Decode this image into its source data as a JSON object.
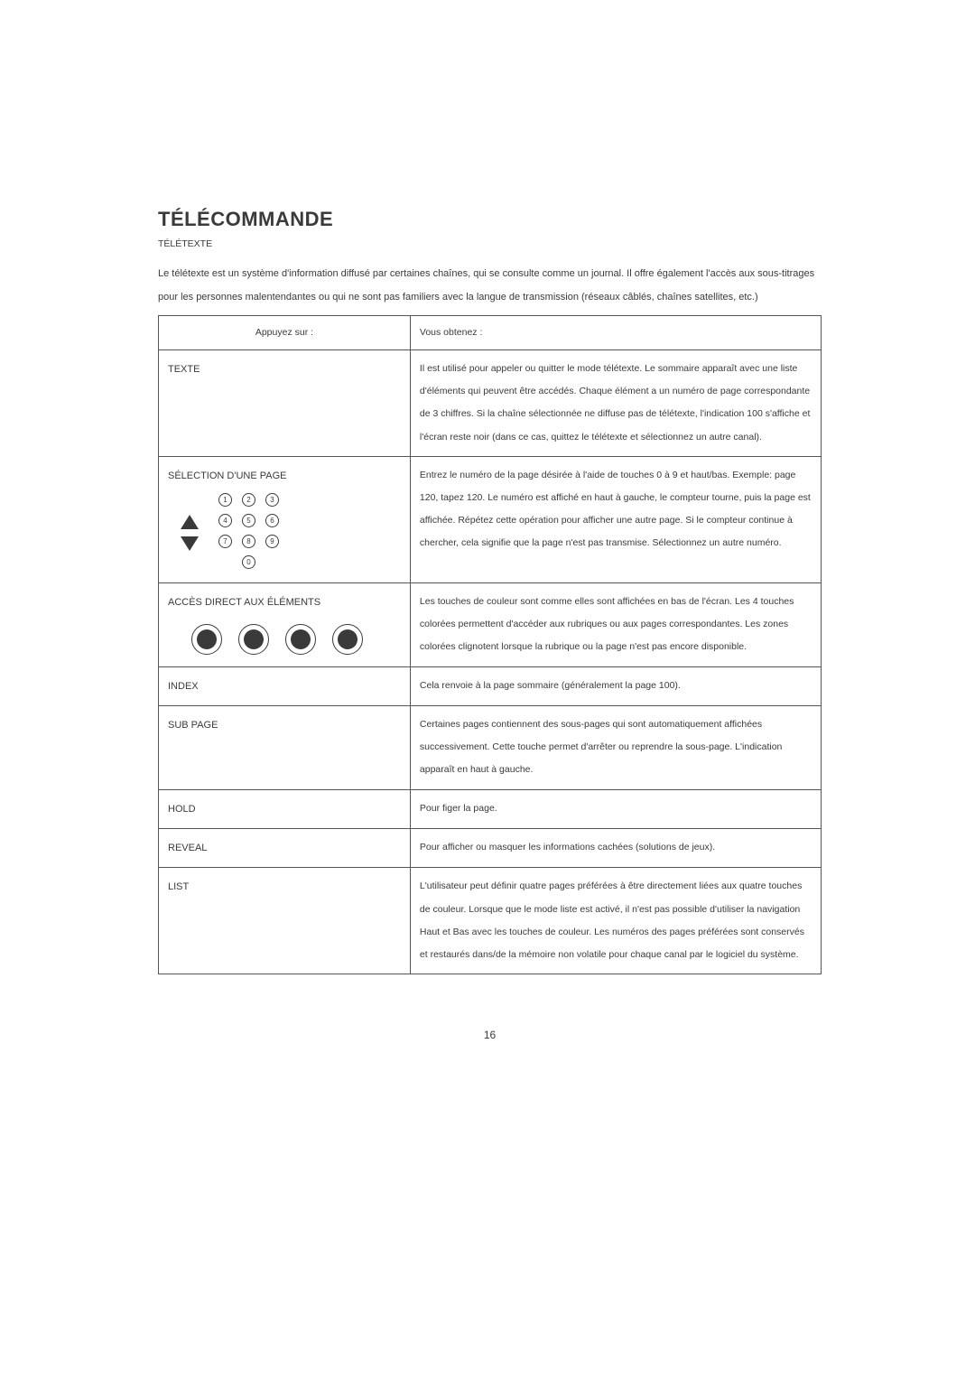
{
  "title": "TÉLÉCOMMANDE",
  "subtitle": "TÉLÉTEXTE",
  "intro": "Le télétexte est un système d'information diffusé par certaines chaînes, qui se consulte comme un journal. Il offre également l'accès aux sous-titrages pour les personnes malentendantes ou qui ne sont pas familiers avec la langue de transmission (réseaux câblés, chaînes satellites, etc.)",
  "headers": {
    "left": "Appuyez sur :",
    "right": "Vous obtenez :"
  },
  "rows": {
    "texte": {
      "label": "TEXTE",
      "desc": "Il est utilisé pour appeler ou quitter le mode télétexte. Le sommaire apparaît avec une liste d'éléments qui peuvent être accédés. Chaque élément a un numéro de page correspondante de 3 chiffres. Si la chaîne sélectionnée ne diffuse pas de télétexte, l'indication 100 s'affiche et l'écran reste noir (dans ce cas, quittez le télétexte et sélectionnez un autre canal)."
    },
    "selection": {
      "label": "SÉLECTION D'UNE PAGE",
      "desc": "Entrez le numéro de la page désirée à l'aide de touches 0 à 9 et haut/bas. Exemple: page 120, tapez 120. Le numéro est affiché en haut à gauche, le compteur tourne, puis la page est affichée. Répétez cette opération pour afficher une autre page. Si le compteur continue à chercher, cela signifie que la page n'est pas transmise. Sélectionnez un autre numéro."
    },
    "acces": {
      "label": "ACCÈS DIRECT AUX ÉLÉMENTS",
      "desc": "Les touches de couleur sont comme elles sont affichées en bas de l'écran. Les 4 touches colorées permettent d'accéder aux rubriques ou aux pages correspondantes. Les zones colorées clignotent lorsque la rubrique ou la page n'est pas encore disponible."
    },
    "index": {
      "label": "INDEX",
      "desc": "Cela renvoie à la page sommaire (généralement la page 100)."
    },
    "subpage": {
      "label": "SUB PAGE",
      "desc": "Certaines pages contiennent des sous-pages qui sont automatiquement affichées successivement. Cette touche permet d'arrêter ou reprendre la sous-page. L'indication apparaît en haut à gauche."
    },
    "hold": {
      "label": "HOLD",
      "desc": "Pour figer la page."
    },
    "reveal": {
      "label": "REVEAL",
      "desc": "Pour afficher ou masquer les informations cachées (solutions de jeux)."
    },
    "list": {
      "label": "LIST",
      "desc": "L'utilisateur peut définir quatre pages préférées à être directement liées aux quatre touches de couleur. Lorsque que le mode liste est activé, il n'est pas possible d'utiliser la navigation Haut et Bas avec les touches de couleur. Les numéros des pages préférées sont conservés et restaurés dans/de la mémoire non volatile pour chaque canal par le logiciel du système."
    }
  },
  "keypad": [
    "1",
    "2",
    "3",
    "4",
    "5",
    "6",
    "7",
    "8",
    "9",
    "0"
  ],
  "page_number": "16"
}
